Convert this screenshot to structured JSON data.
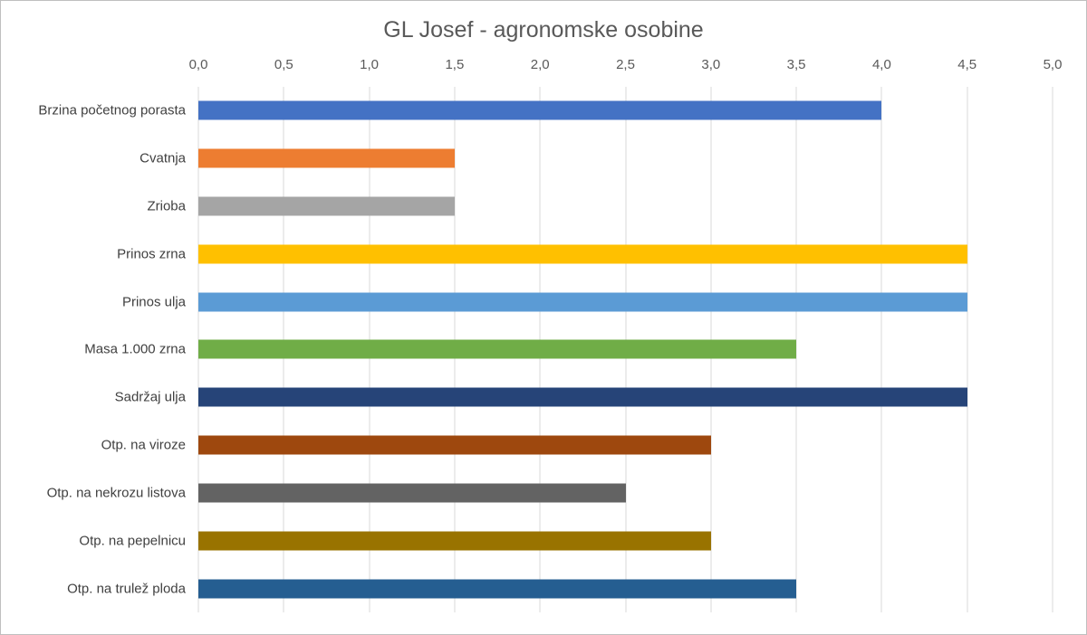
{
  "chart_data": {
    "type": "bar",
    "orientation": "horizontal",
    "title": "GL Josef - agronomske osobine",
    "categories": [
      "Brzina početnog porasta",
      "Cvatnja",
      "Zrioba",
      "Prinos zrna",
      "Prinos ulja",
      "Masa 1.000 zrna",
      "Sadržaj ulja",
      "Otp. na viroze",
      "Otp. na nekrozu listova",
      "Otp. na pepelnicu",
      "Otp. na trulež ploda"
    ],
    "values": [
      4.0,
      1.5,
      1.5,
      4.5,
      4.5,
      3.5,
      4.5,
      3.0,
      2.5,
      3.0,
      3.5
    ],
    "bar_colors": [
      "#4472C4",
      "#ED7D31",
      "#A5A5A5",
      "#FFC000",
      "#5B9BD5",
      "#70AD47",
      "#264478",
      "#9E480E",
      "#636363",
      "#997300",
      "#255E91"
    ],
    "xlim": [
      0,
      5
    ],
    "x_ticks": [
      "0,0",
      "0,5",
      "1,0",
      "1,5",
      "2,0",
      "2,5",
      "3,0",
      "3,5",
      "4,0",
      "4,5",
      "5,0"
    ],
    "x_tick_values": [
      0,
      0.5,
      1,
      1.5,
      2,
      2.5,
      3,
      3.5,
      4,
      4.5,
      5
    ],
    "grid": true,
    "gridline_color": "#D9D9D9",
    "legend": "none",
    "axis_label_position": "top",
    "title_color": "#595959",
    "tick_label_color": "#595959",
    "category_label_color": "#404040"
  }
}
